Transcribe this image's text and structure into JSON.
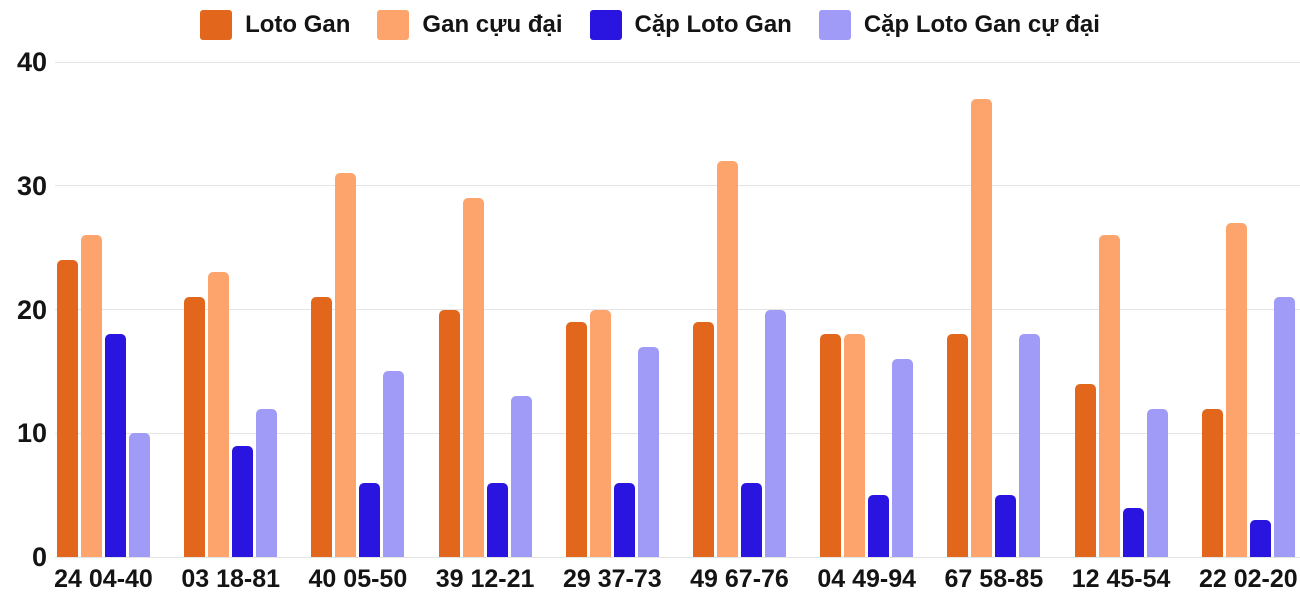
{
  "chart_data": {
    "type": "bar",
    "title": "",
    "categories": [
      "24 04-40",
      "03 18-81",
      "40 05-50",
      "39 12-21",
      "29 37-73",
      "49 67-76",
      "04 49-94",
      "67 58-85",
      "12 45-54",
      "22 02-20"
    ],
    "series": [
      {
        "name": "Loto Gan",
        "color": "#e2671c",
        "values": [
          24,
          21,
          21,
          20,
          19,
          19,
          18,
          18,
          14,
          12
        ]
      },
      {
        "name": "Gan cựu đại",
        "color": "#fca46c",
        "values": [
          26,
          23,
          31,
          29,
          20,
          32,
          18,
          37,
          26,
          27
        ]
      },
      {
        "name": "Cặp Loto Gan",
        "color": "#2a15e0",
        "values": [
          18,
          9,
          6,
          6,
          6,
          6,
          5,
          5,
          4,
          3
        ]
      },
      {
        "name": "Cặp Loto Gan cự đại",
        "color": "#a09bf7",
        "values": [
          10,
          12,
          15,
          13,
          17,
          20,
          16,
          18,
          12,
          21
        ]
      }
    ],
    "y_axis": {
      "ticks": [
        0,
        10,
        20,
        30,
        40
      ],
      "range": [
        0,
        40
      ],
      "gridlines": true
    },
    "x_axis": {
      "label": ""
    },
    "legend_position": "top"
  },
  "colors": {
    "background": "#ffffff",
    "gridline": "#e4e4e4",
    "text": "#141414"
  }
}
